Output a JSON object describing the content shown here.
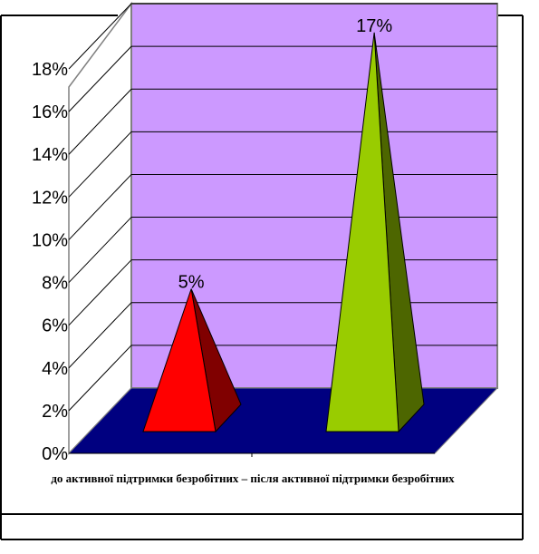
{
  "chart_data": {
    "type": "bar",
    "style": "3d-pyramid",
    "categories": [
      "до активної підтримки безробітних",
      "після активної підтримки безробітних"
    ],
    "values": [
      5,
      17
    ],
    "data_labels": [
      "5%",
      "17%"
    ],
    "y_ticks": [
      "0%",
      "2%",
      "4%",
      "6%",
      "8%",
      "10%",
      "12%",
      "14%",
      "16%",
      "18%"
    ],
    "ylim": [
      0,
      18
    ],
    "grid": true,
    "legend": "none",
    "category_caption": "до активної підтримки безробітних – після активної підтримки безробітних",
    "colors": {
      "back_wall": "#CC99FF",
      "floor": "#000080",
      "side_wall": "#FFFFFF",
      "series": [
        {
          "front": "#FF0000",
          "side": "#800000"
        },
        {
          "front": "#99CC00",
          "side": "#4D6600"
        }
      ]
    }
  }
}
